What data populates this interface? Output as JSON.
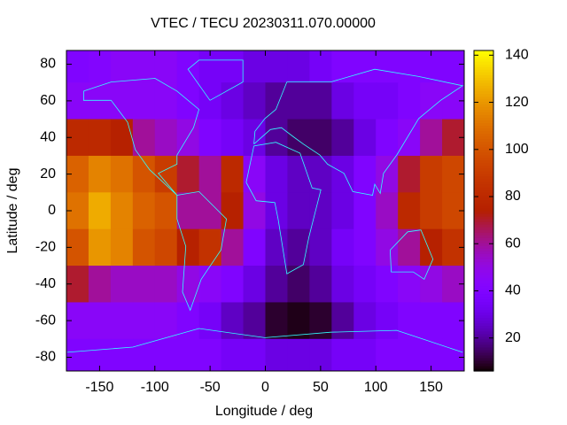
{
  "chart_data": {
    "type": "heatmap",
    "title": "VTEC / TECU 20230311.070.00000",
    "xlabel": "Longitude / deg",
    "ylabel": "Latitude / deg",
    "x": [
      -170,
      -150,
      -130,
      -110,
      -90,
      -70,
      -50,
      -30,
      -10,
      10,
      30,
      50,
      70,
      90,
      110,
      130,
      150,
      170
    ],
    "y": [
      80,
      60,
      40,
      20,
      0,
      -20,
      -40,
      -60,
      -80
    ],
    "z": [
      [
        40,
        42,
        45,
        45,
        45,
        40,
        35,
        35,
        30,
        30,
        30,
        35,
        40,
        40,
        40,
        40,
        40,
        40
      ],
      [
        45,
        45,
        45,
        45,
        45,
        40,
        35,
        30,
        25,
        20,
        20,
        20,
        30,
        35,
        35,
        40,
        45,
        45
      ],
      [
        80,
        80,
        75,
        60,
        55,
        50,
        40,
        35,
        30,
        20,
        15,
        15,
        20,
        30,
        40,
        45,
        60,
        70
      ],
      [
        105,
        115,
        110,
        100,
        90,
        70,
        60,
        80,
        45,
        30,
        25,
        25,
        30,
        40,
        50,
        70,
        90,
        95
      ],
      [
        110,
        125,
        115,
        105,
        100,
        60,
        60,
        75,
        50,
        30,
        25,
        25,
        30,
        40,
        55,
        80,
        90,
        95
      ],
      [
        100,
        120,
        115,
        100,
        95,
        75,
        85,
        60,
        40,
        25,
        20,
        25,
        35,
        40,
        50,
        60,
        75,
        85
      ],
      [
        70,
        60,
        55,
        55,
        55,
        50,
        45,
        40,
        30,
        20,
        15,
        20,
        30,
        35,
        40,
        45,
        50,
        55
      ],
      [
        45,
        45,
        45,
        45,
        45,
        40,
        35,
        25,
        20,
        10,
        8,
        10,
        20,
        30,
        35,
        40,
        40,
        40
      ],
      [
        40,
        40,
        40,
        40,
        40,
        40,
        40,
        35,
        35,
        30,
        30,
        30,
        35,
        35,
        40,
        40,
        40,
        40
      ]
    ],
    "xlim": [
      -180,
      180
    ],
    "ylim": [
      -87.5,
      87.5
    ],
    "xticks": [
      -150,
      -100,
      -50,
      0,
      50,
      100,
      150
    ],
    "yticks": [
      -80,
      -60,
      -40,
      -20,
      0,
      20,
      40,
      60,
      80
    ],
    "zlim": [
      6,
      142
    ],
    "zticks": [
      20,
      40,
      60,
      80,
      100,
      120,
      140
    ],
    "colormap": "gnuplot"
  }
}
